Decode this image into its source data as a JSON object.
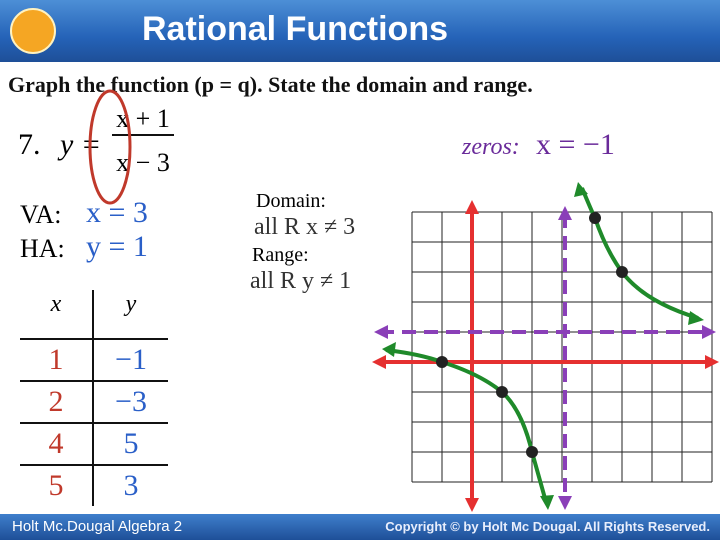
{
  "header": {
    "title": "Rational Functions"
  },
  "prompt": "Graph the function (p = q). State the domain and range.",
  "problem": {
    "number": "7.",
    "lhs": "y =",
    "numerator": "x + 1",
    "denominator": "x − 3"
  },
  "zeros": {
    "label": "zeros:",
    "value": "x = −1"
  },
  "asymptotes": {
    "va": {
      "label": "VA:",
      "value": "x = 3"
    },
    "ha": {
      "label": "HA:",
      "value": "y = 1"
    }
  },
  "domain": {
    "label": "Domain:",
    "value": "all R  x ≠ 3"
  },
  "range": {
    "label": "Range:",
    "value": "all R  y ≠ 1"
  },
  "table": {
    "header": [
      "x",
      "y"
    ],
    "rows": [
      [
        "1",
        "−1"
      ],
      [
        "2",
        "−3"
      ],
      [
        "4",
        "5"
      ],
      [
        "5",
        "3"
      ]
    ]
  },
  "footer": {
    "left": "Holt Mc.Dougal Algebra 2",
    "right": "Copyright © by Holt Mc Dougal. All Rights Reserved."
  }
}
